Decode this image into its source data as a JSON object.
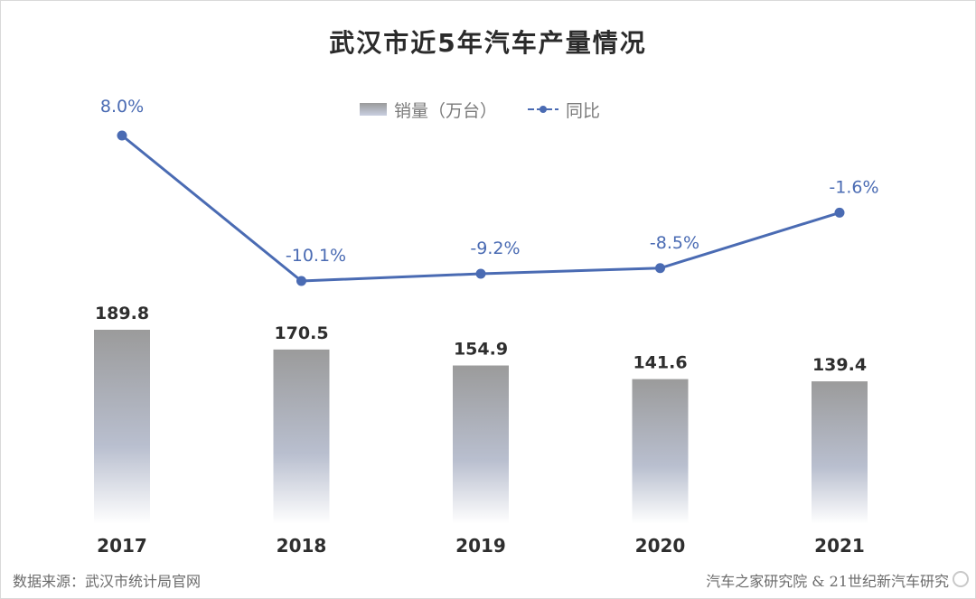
{
  "chart_data": {
    "type": "bar",
    "title": "武汉市近5年汽车产量情况",
    "categories": [
      "2017",
      "2018",
      "2019",
      "2020",
      "2021"
    ],
    "series": [
      {
        "name": "销量（万台）",
        "type": "bar",
        "values": [
          189.8,
          170.5,
          154.9,
          141.6,
          139.4
        ],
        "labels": [
          "189.8",
          "170.5",
          "154.9",
          "141.6",
          "139.4"
        ]
      },
      {
        "name": "同比",
        "type": "line",
        "values": [
          8.0,
          -10.1,
          -9.2,
          -8.5,
          -1.6
        ],
        "labels": [
          "8.0%",
          "-10.1%",
          "-9.2%",
          "-8.5%",
          "-1.6%"
        ],
        "unit": "%"
      }
    ],
    "legend_position": "top-center",
    "grid": false,
    "colors": {
      "bar_top": "#999999",
      "bar_bottom": "#dfe4f1",
      "line": "#4a6bb3",
      "label": "#2e2e2e",
      "line_label": "#4a6bb3"
    }
  },
  "source": {
    "left": "数据来源：武汉市统计局官网",
    "right": "汽车之家研究院 & 21世纪新汽车研究"
  }
}
